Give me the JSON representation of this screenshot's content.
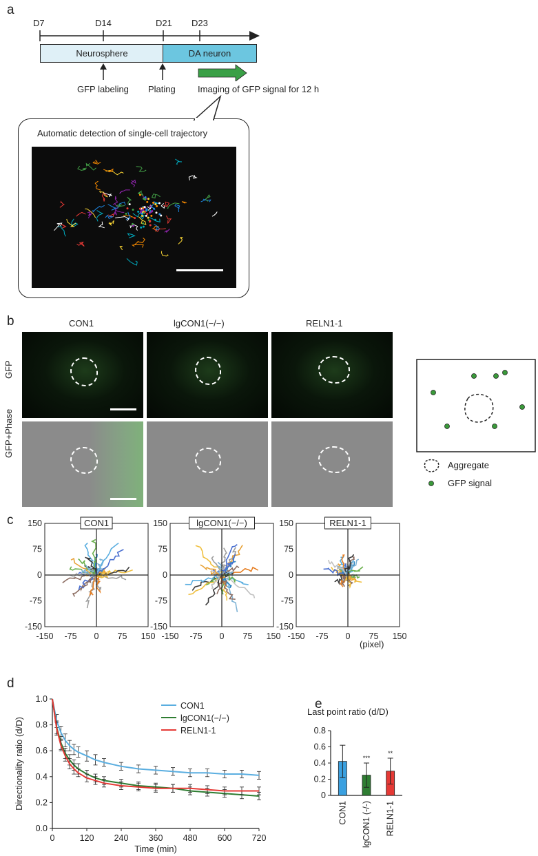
{
  "panel_a": {
    "label": "a",
    "days": [
      "D7",
      "D14",
      "D21",
      "D23"
    ],
    "stage1": "Neurosphere",
    "stage2": "DA neuron",
    "event1": "GFP labeling",
    "event2": "Plating",
    "event3": "Imaging of GFP signal for 12 h",
    "bubble_title": "Automatic detection of single-cell trajectory",
    "colors": {
      "neurosphere": "#dff0f7",
      "da_neuron": "#6cc6e0",
      "arrow": "#3aa046"
    }
  },
  "panel_b": {
    "label": "b",
    "columns": [
      "CON1",
      "lgCON1(−/−)",
      "RELN1-1"
    ],
    "rows": [
      "GFP",
      "GFP+Phase"
    ],
    "legend_aggregate": "Aggregate",
    "legend_gfp": "GFP signal",
    "colors": {
      "gfp_dot": "#3a9a3a"
    }
  },
  "panel_c": {
    "label": "c",
    "unit": "(pixel)",
    "charts": [
      "CON1",
      "lgCON1(−/−)",
      "RELN1-1"
    ]
  },
  "chart_data": [
    {
      "type": "scatter",
      "title": "CON1",
      "xlim": [
        -150,
        150
      ],
      "ylim": [
        -150,
        150
      ],
      "x_ticks": [
        "-150",
        "-75",
        "0",
        "75",
        "150"
      ],
      "y_ticks": [
        "150",
        "75",
        "0",
        "-75",
        "-150"
      ]
    },
    {
      "type": "scatter",
      "title": "lgCON1(−/−)",
      "xlim": [
        -150,
        150
      ],
      "ylim": [
        -150,
        150
      ],
      "x_ticks": [
        "-150",
        "-75",
        "0",
        "75",
        "150"
      ],
      "y_ticks": [
        "150",
        "75",
        "0",
        "-75",
        "-150"
      ]
    },
    {
      "type": "scatter",
      "title": "RELN1-1",
      "xlim": [
        -150,
        150
      ],
      "ylim": [
        -150,
        150
      ],
      "x_ticks": [
        "-150",
        "-75",
        "0",
        "75",
        "150"
      ],
      "y_ticks": [
        "150",
        "75",
        "0",
        "-75",
        "-150"
      ]
    },
    {
      "type": "line",
      "xlabel": "Time (min)",
      "ylabel": "Directionality ratio (d/D)",
      "xlim": [
        0,
        720
      ],
      "ylim": [
        0,
        1.0
      ],
      "x_ticks": [
        "0",
        "120",
        "240",
        "360",
        "480",
        "600",
        "720"
      ],
      "y_ticks": [
        "0.0",
        "0.2",
        "0.4",
        "0.6",
        "0.8",
        "1.0"
      ],
      "legend_position": "top-right",
      "x": [
        0,
        15,
        30,
        45,
        60,
        75,
        90,
        120,
        150,
        180,
        240,
        300,
        360,
        420,
        480,
        540,
        600,
        660,
        720
      ],
      "series": [
        {
          "name": "CON1",
          "color": "#5aaee0",
          "values": [
            1.0,
            0.83,
            0.74,
            0.68,
            0.64,
            0.61,
            0.59,
            0.56,
            0.53,
            0.51,
            0.48,
            0.46,
            0.45,
            0.44,
            0.43,
            0.43,
            0.42,
            0.42,
            0.41
          ],
          "errors": [
            0,
            0.05,
            0.05,
            0.05,
            0.04,
            0.04,
            0.04,
            0.04,
            0.04,
            0.03,
            0.03,
            0.03,
            0.03,
            0.03,
            0.03,
            0.03,
            0.03,
            0.03,
            0.03
          ]
        },
        {
          "name": "lgCON1(−/−)",
          "color": "#2e7d32",
          "values": [
            1.0,
            0.78,
            0.66,
            0.58,
            0.53,
            0.49,
            0.46,
            0.42,
            0.39,
            0.37,
            0.35,
            0.33,
            0.32,
            0.31,
            0.29,
            0.28,
            0.27,
            0.26,
            0.25
          ],
          "errors": [
            0,
            0.05,
            0.05,
            0.04,
            0.04,
            0.04,
            0.04,
            0.03,
            0.03,
            0.03,
            0.03,
            0.03,
            0.03,
            0.03,
            0.03,
            0.03,
            0.03,
            0.03,
            0.03
          ]
        },
        {
          "name": "RELN1-1",
          "color": "#e53935",
          "values": [
            1.0,
            0.77,
            0.64,
            0.56,
            0.5,
            0.46,
            0.43,
            0.39,
            0.37,
            0.35,
            0.33,
            0.32,
            0.31,
            0.31,
            0.31,
            0.3,
            0.29,
            0.29,
            0.29
          ],
          "errors": [
            0,
            0.05,
            0.04,
            0.04,
            0.04,
            0.04,
            0.03,
            0.03,
            0.03,
            0.03,
            0.03,
            0.03,
            0.03,
            0.03,
            0.03,
            0.03,
            0.03,
            0.03,
            0.03
          ]
        }
      ]
    },
    {
      "type": "bar",
      "title": "Last point ratio (d/D)",
      "categories": [
        "CON1",
        "lgCON1 (-/-)",
        "RELN1-1"
      ],
      "values": [
        0.42,
        0.25,
        0.3
      ],
      "errors": [
        0.2,
        0.15,
        0.16
      ],
      "colors": [
        "#3aa0e0",
        "#2e7d32",
        "#e53935"
      ],
      "significance": [
        "",
        "***",
        "**"
      ],
      "ylim": [
        0,
        0.8
      ],
      "y_ticks": [
        "0.8",
        "0.6",
        "0.4",
        "0.2",
        "0"
      ]
    }
  ],
  "panel_d": {
    "label": "d"
  },
  "panel_e": {
    "label": "e"
  }
}
